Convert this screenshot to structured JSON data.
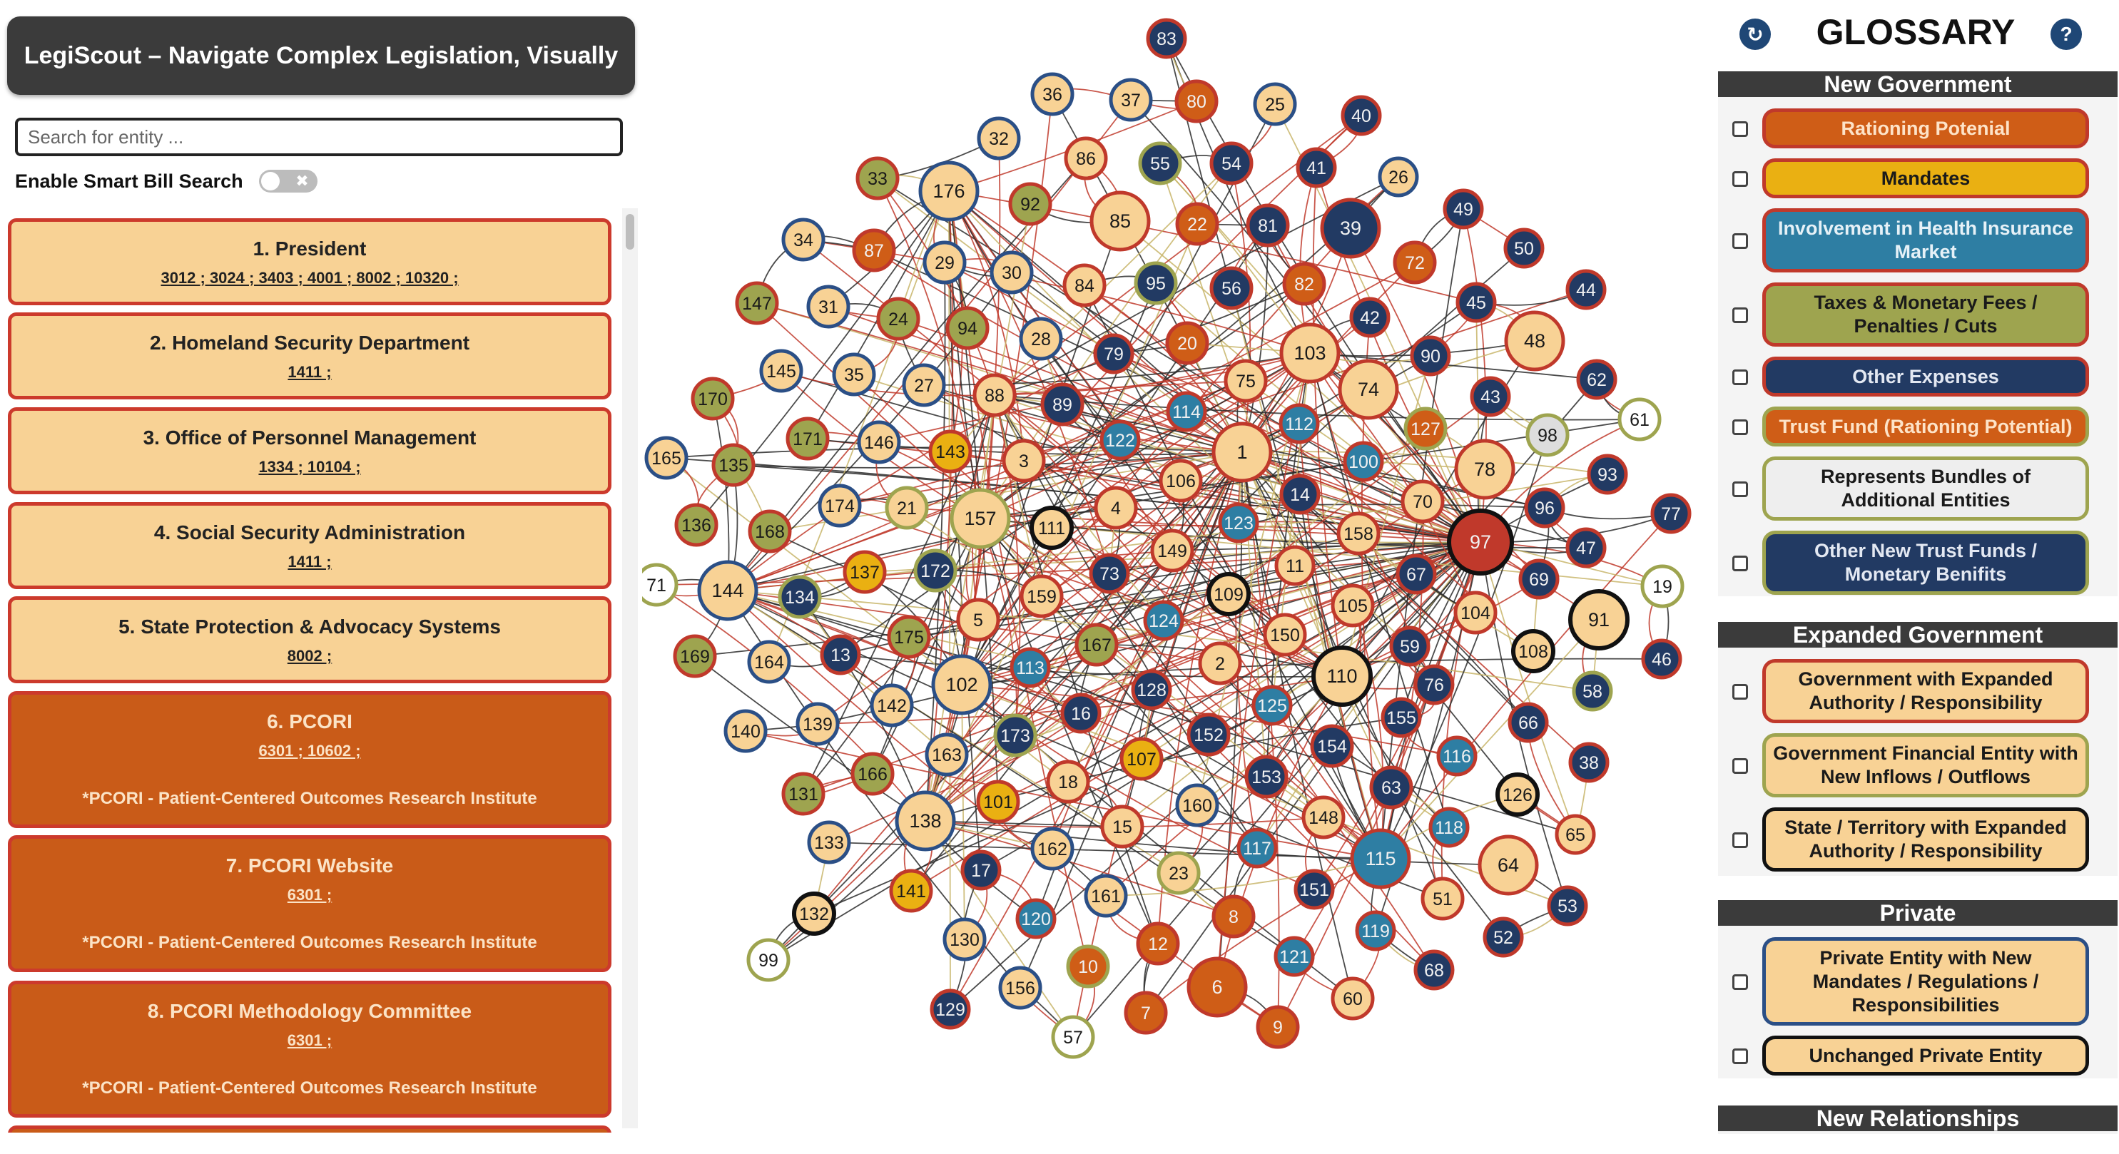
{
  "app": {
    "title": "LegiScout – Navigate Complex Legislation, Visually"
  },
  "search": {
    "placeholder": "Search for entity ..."
  },
  "smart_search": {
    "label": "Enable Smart Bill Search",
    "enabled": false,
    "toggle_glyph": "✖"
  },
  "entities": [
    {
      "title": "1. President",
      "bills": "3012 ; 3024 ; 3403 ; 4001 ; 8002 ; 10320 ;",
      "note": ""
    },
    {
      "title": "2. Homeland Security Department",
      "bills": "1411 ;",
      "note": ""
    },
    {
      "title": "3. Office of Personnel Management",
      "bills": "1334 ; 10104 ;",
      "note": ""
    },
    {
      "title": "4. Social Security Administration",
      "bills": "1411 ;",
      "note": ""
    },
    {
      "title": "5. State Protection & Advocacy Systems",
      "bills": "8002 ;",
      "note": ""
    },
    {
      "title": "6. PCORI",
      "bills": "6301 ; 10602 ;",
      "note": "*PCORI - Patient-Centered Outcomes Research Institute"
    },
    {
      "title": "7. PCORI Website",
      "bills": "6301 ;",
      "note": "*PCORI - Patient-Centered Outcomes Research Institute"
    },
    {
      "title": "8. PCORI Methodology Committee",
      "bills": "6301 ;",
      "note": "*PCORI - Patient-Centered Outcomes Research Institute"
    }
  ],
  "glossary": {
    "title": "GLOSSARY",
    "refresh_icon": "refresh-icon",
    "help_icon": "help-icon",
    "help_glyph": "?",
    "refresh_glyph": "↻",
    "sections": [
      {
        "header": "New Government",
        "items": [
          {
            "label": "Rationing Potenial",
            "fill": "#cf5d17",
            "border": "#c0392b",
            "text": "#fde3c8"
          },
          {
            "label": "Mandates",
            "fill": "#eab012",
            "border": "#c0392b",
            "text": "#1a1a1a"
          },
          {
            "label": "Involvement in Health Insurance Market",
            "fill": "#2e7ea3",
            "border": "#c0392b",
            "text": "#e6f1f7"
          },
          {
            "label": "Taxes & Monetary Fees / Penalties / Cuts",
            "fill": "#9ea44f",
            "border": "#c0392b",
            "text": "#1a1a1a"
          },
          {
            "label": "Other Expenses",
            "fill": "#223a63",
            "border": "#c0392b",
            "text": "#e3e8f2"
          },
          {
            "label": "Trust Fund (Rationing Potential)",
            "fill": "#cf5d17",
            "border": "#9ea44f",
            "text": "#fde3c8"
          },
          {
            "label": "Represents Bundles of Additional Entities",
            "fill": "#eeeeee",
            "border": "#9ea44f",
            "text": "#1a1a1a"
          },
          {
            "label": "Other New Trust Funds / Monetary Benifits",
            "fill": "#223a63",
            "border": "#9ea44f",
            "text": "#e3e8f2"
          }
        ]
      },
      {
        "header": "Expanded Government",
        "items": [
          {
            "label": "Government with Expanded Authority / Responsibility",
            "fill": "#f8d295",
            "border": "#c0392b",
            "text": "#1a1a1a"
          },
          {
            "label": "Government Financial Entity with New Inflows / Outflows",
            "fill": "#f8d295",
            "border": "#9ea44f",
            "text": "#1a1a1a"
          },
          {
            "label": "State / Territory with Expanded Authority / Responsibility",
            "fill": "#f8d295",
            "border": "#111111",
            "text": "#1a1a1a"
          }
        ]
      },
      {
        "header": "Private",
        "items": [
          {
            "label": "Private Entity with New Mandates / Regulations / Responsibilities",
            "fill": "#f8d295",
            "border": "#2b4f86",
            "text": "#1a1a1a"
          },
          {
            "label": "Unchanged Private Entity",
            "fill": "#f8d295",
            "border": "#111111",
            "text": "#1a1a1a"
          }
        ]
      },
      {
        "header": "New Relationships",
        "items": []
      }
    ]
  },
  "graph": {
    "category_colors": {
      "peach": "#f8d295",
      "rust": "#cf5d17",
      "navy": "#223a63",
      "teal": "#2e7ea3",
      "olive": "#9ea44f",
      "gold": "#eab012",
      "white": "#ffffff",
      "grey": "#dddddd",
      "hub": "#c0392b"
    },
    "nodes": [
      {
        "id": "1",
        "c": "peach",
        "b": "red"
      },
      {
        "id": "2",
        "c": "peach",
        "b": "red"
      },
      {
        "id": "3",
        "c": "peach",
        "b": "red"
      },
      {
        "id": "4",
        "c": "peach",
        "b": "red"
      },
      {
        "id": "5",
        "c": "peach",
        "b": "red"
      },
      {
        "id": "6",
        "c": "rust",
        "b": "red"
      },
      {
        "id": "7",
        "c": "rust",
        "b": "red"
      },
      {
        "id": "8",
        "c": "rust",
        "b": "red"
      },
      {
        "id": "9",
        "c": "rust",
        "b": "red"
      },
      {
        "id": "10",
        "c": "rust",
        "b": "olive"
      },
      {
        "id": "11",
        "c": "peach",
        "b": "red"
      },
      {
        "id": "12",
        "c": "rust",
        "b": "red"
      },
      {
        "id": "13",
        "c": "navy",
        "b": "red"
      },
      {
        "id": "14",
        "c": "navy",
        "b": "red"
      },
      {
        "id": "15",
        "c": "peach",
        "b": "red"
      },
      {
        "id": "16",
        "c": "navy",
        "b": "red"
      },
      {
        "id": "17",
        "c": "navy",
        "b": "red"
      },
      {
        "id": "18",
        "c": "peach",
        "b": "red"
      },
      {
        "id": "19",
        "c": "white",
        "b": "olive"
      },
      {
        "id": "20",
        "c": "rust",
        "b": "red"
      },
      {
        "id": "21",
        "c": "peach",
        "b": "olive"
      },
      {
        "id": "22",
        "c": "rust",
        "b": "red"
      },
      {
        "id": "23",
        "c": "peach",
        "b": "olive"
      },
      {
        "id": "24",
        "c": "olive",
        "b": "red"
      },
      {
        "id": "25",
        "c": "peach",
        "b": "blue"
      },
      {
        "id": "26",
        "c": "peach",
        "b": "blue"
      },
      {
        "id": "27",
        "c": "peach",
        "b": "blue"
      },
      {
        "id": "28",
        "c": "peach",
        "b": "blue"
      },
      {
        "id": "29",
        "c": "peach",
        "b": "blue"
      },
      {
        "id": "30",
        "c": "peach",
        "b": "blue"
      },
      {
        "id": "31",
        "c": "peach",
        "b": "blue"
      },
      {
        "id": "32",
        "c": "peach",
        "b": "blue"
      },
      {
        "id": "33",
        "c": "olive",
        "b": "red"
      },
      {
        "id": "34",
        "c": "peach",
        "b": "blue"
      },
      {
        "id": "35",
        "c": "peach",
        "b": "blue"
      },
      {
        "id": "36",
        "c": "peach",
        "b": "blue"
      },
      {
        "id": "37",
        "c": "peach",
        "b": "blue"
      },
      {
        "id": "38",
        "c": "navy",
        "b": "red"
      },
      {
        "id": "39",
        "c": "navy",
        "b": "red"
      },
      {
        "id": "40",
        "c": "navy",
        "b": "red"
      },
      {
        "id": "41",
        "c": "navy",
        "b": "red"
      },
      {
        "id": "42",
        "c": "navy",
        "b": "red"
      },
      {
        "id": "43",
        "c": "navy",
        "b": "red"
      },
      {
        "id": "44",
        "c": "navy",
        "b": "red"
      },
      {
        "id": "45",
        "c": "navy",
        "b": "red"
      },
      {
        "id": "46",
        "c": "navy",
        "b": "red"
      },
      {
        "id": "47",
        "c": "navy",
        "b": "red"
      },
      {
        "id": "48",
        "c": "peach",
        "b": "red"
      },
      {
        "id": "49",
        "c": "navy",
        "b": "red"
      },
      {
        "id": "50",
        "c": "navy",
        "b": "red"
      },
      {
        "id": "51",
        "c": "peach",
        "b": "red"
      },
      {
        "id": "52",
        "c": "navy",
        "b": "red"
      },
      {
        "id": "53",
        "c": "navy",
        "b": "red"
      },
      {
        "id": "54",
        "c": "navy",
        "b": "red"
      },
      {
        "id": "55",
        "c": "navy",
        "b": "olive"
      },
      {
        "id": "56",
        "c": "navy",
        "b": "red"
      },
      {
        "id": "57",
        "c": "white",
        "b": "olive"
      },
      {
        "id": "58",
        "c": "navy",
        "b": "olive"
      },
      {
        "id": "59",
        "c": "navy",
        "b": "red"
      },
      {
        "id": "60",
        "c": "peach",
        "b": "red"
      },
      {
        "id": "61",
        "c": "white",
        "b": "olive"
      },
      {
        "id": "62",
        "c": "navy",
        "b": "red"
      },
      {
        "id": "63",
        "c": "navy",
        "b": "red"
      },
      {
        "id": "64",
        "c": "peach",
        "b": "red"
      },
      {
        "id": "65",
        "c": "peach",
        "b": "red"
      },
      {
        "id": "66",
        "c": "navy",
        "b": "red"
      },
      {
        "id": "67",
        "c": "navy",
        "b": "red"
      },
      {
        "id": "68",
        "c": "navy",
        "b": "red"
      },
      {
        "id": "69",
        "c": "navy",
        "b": "red"
      },
      {
        "id": "70",
        "c": "peach",
        "b": "red"
      },
      {
        "id": "71",
        "c": "white",
        "b": "olive"
      },
      {
        "id": "72",
        "c": "rust",
        "b": "red"
      },
      {
        "id": "73",
        "c": "navy",
        "b": "red"
      },
      {
        "id": "74",
        "c": "peach",
        "b": "red"
      },
      {
        "id": "75",
        "c": "peach",
        "b": "red"
      },
      {
        "id": "76",
        "c": "navy",
        "b": "red"
      },
      {
        "id": "77",
        "c": "navy",
        "b": "red"
      },
      {
        "id": "78",
        "c": "peach",
        "b": "red"
      },
      {
        "id": "79",
        "c": "navy",
        "b": "red"
      },
      {
        "id": "80",
        "c": "rust",
        "b": "red"
      },
      {
        "id": "81",
        "c": "navy",
        "b": "red"
      },
      {
        "id": "82",
        "c": "rust",
        "b": "red"
      },
      {
        "id": "83",
        "c": "navy",
        "b": "red"
      },
      {
        "id": "84",
        "c": "peach",
        "b": "red"
      },
      {
        "id": "85",
        "c": "peach",
        "b": "red"
      },
      {
        "id": "86",
        "c": "peach",
        "b": "red"
      },
      {
        "id": "87",
        "c": "rust",
        "b": "red"
      },
      {
        "id": "88",
        "c": "peach",
        "b": "red"
      },
      {
        "id": "89",
        "c": "navy",
        "b": "red"
      },
      {
        "id": "90",
        "c": "navy",
        "b": "red"
      },
      {
        "id": "91",
        "c": "peach",
        "b": "black"
      },
      {
        "id": "92",
        "c": "olive",
        "b": "red"
      },
      {
        "id": "93",
        "c": "navy",
        "b": "red"
      },
      {
        "id": "94",
        "c": "olive",
        "b": "red"
      },
      {
        "id": "95",
        "c": "navy",
        "b": "olive"
      },
      {
        "id": "96",
        "c": "navy",
        "b": "red"
      },
      {
        "id": "97",
        "c": "hub",
        "b": "black"
      },
      {
        "id": "98",
        "c": "grey",
        "b": "olive"
      },
      {
        "id": "99",
        "c": "white",
        "b": "olive"
      },
      {
        "id": "100",
        "c": "teal",
        "b": "red"
      },
      {
        "id": "101",
        "c": "gold",
        "b": "red"
      },
      {
        "id": "102",
        "c": "peach",
        "b": "blue"
      },
      {
        "id": "103",
        "c": "peach",
        "b": "red"
      },
      {
        "id": "104",
        "c": "peach",
        "b": "red"
      },
      {
        "id": "105",
        "c": "peach",
        "b": "red"
      },
      {
        "id": "106",
        "c": "peach",
        "b": "red"
      },
      {
        "id": "107",
        "c": "gold",
        "b": "red"
      },
      {
        "id": "108",
        "c": "peach",
        "b": "black"
      },
      {
        "id": "109",
        "c": "peach",
        "b": "black"
      },
      {
        "id": "110",
        "c": "peach",
        "b": "black"
      },
      {
        "id": "111",
        "c": "peach",
        "b": "black"
      },
      {
        "id": "112",
        "c": "teal",
        "b": "red"
      },
      {
        "id": "113",
        "c": "teal",
        "b": "red"
      },
      {
        "id": "114",
        "c": "teal",
        "b": "red"
      },
      {
        "id": "115",
        "c": "teal",
        "b": "red"
      },
      {
        "id": "116",
        "c": "teal",
        "b": "red"
      },
      {
        "id": "117",
        "c": "teal",
        "b": "red"
      },
      {
        "id": "118",
        "c": "teal",
        "b": "red"
      },
      {
        "id": "119",
        "c": "teal",
        "b": "red"
      },
      {
        "id": "120",
        "c": "teal",
        "b": "red"
      },
      {
        "id": "121",
        "c": "teal",
        "b": "red"
      },
      {
        "id": "122",
        "c": "teal",
        "b": "red"
      },
      {
        "id": "123",
        "c": "teal",
        "b": "red"
      },
      {
        "id": "124",
        "c": "teal",
        "b": "red"
      },
      {
        "id": "125",
        "c": "teal",
        "b": "red"
      },
      {
        "id": "126",
        "c": "peach",
        "b": "black"
      },
      {
        "id": "127",
        "c": "rust",
        "b": "olive"
      },
      {
        "id": "128",
        "c": "navy",
        "b": "red"
      },
      {
        "id": "129",
        "c": "navy",
        "b": "red"
      },
      {
        "id": "130",
        "c": "peach",
        "b": "blue"
      },
      {
        "id": "131",
        "c": "olive",
        "b": "red"
      },
      {
        "id": "132",
        "c": "peach",
        "b": "black"
      },
      {
        "id": "133",
        "c": "peach",
        "b": "blue"
      },
      {
        "id": "134",
        "c": "navy",
        "b": "olive"
      },
      {
        "id": "135",
        "c": "olive",
        "b": "red"
      },
      {
        "id": "136",
        "c": "olive",
        "b": "red"
      },
      {
        "id": "137",
        "c": "gold",
        "b": "red"
      },
      {
        "id": "138",
        "c": "peach",
        "b": "blue"
      },
      {
        "id": "139",
        "c": "peach",
        "b": "blue"
      },
      {
        "id": "140",
        "c": "peach",
        "b": "blue"
      },
      {
        "id": "141",
        "c": "gold",
        "b": "red"
      },
      {
        "id": "142",
        "c": "peach",
        "b": "blue"
      },
      {
        "id": "143",
        "c": "gold",
        "b": "red"
      },
      {
        "id": "144",
        "c": "peach",
        "b": "blue"
      },
      {
        "id": "145",
        "c": "peach",
        "b": "blue"
      },
      {
        "id": "146",
        "c": "peach",
        "b": "blue"
      },
      {
        "id": "147",
        "c": "olive",
        "b": "red"
      },
      {
        "id": "148",
        "c": "peach",
        "b": "red"
      },
      {
        "id": "149",
        "c": "peach",
        "b": "red"
      },
      {
        "id": "150",
        "c": "peach",
        "b": "red"
      },
      {
        "id": "151",
        "c": "navy",
        "b": "red"
      },
      {
        "id": "152",
        "c": "navy",
        "b": "red"
      },
      {
        "id": "153",
        "c": "navy",
        "b": "red"
      },
      {
        "id": "154",
        "c": "navy",
        "b": "red"
      },
      {
        "id": "155",
        "c": "navy",
        "b": "red"
      },
      {
        "id": "156",
        "c": "peach",
        "b": "blue"
      },
      {
        "id": "157",
        "c": "peach",
        "b": "olive"
      },
      {
        "id": "158",
        "c": "peach",
        "b": "red"
      },
      {
        "id": "159",
        "c": "peach",
        "b": "red"
      },
      {
        "id": "160",
        "c": "peach",
        "b": "blue"
      },
      {
        "id": "161",
        "c": "peach",
        "b": "blue"
      },
      {
        "id": "162",
        "c": "peach",
        "b": "blue"
      },
      {
        "id": "163",
        "c": "peach",
        "b": "blue"
      },
      {
        "id": "164",
        "c": "peach",
        "b": "blue"
      },
      {
        "id": "165",
        "c": "peach",
        "b": "blue"
      },
      {
        "id": "166",
        "c": "olive",
        "b": "red"
      },
      {
        "id": "167",
        "c": "olive",
        "b": "red"
      },
      {
        "id": "168",
        "c": "olive",
        "b": "red"
      },
      {
        "id": "169",
        "c": "olive",
        "b": "red"
      },
      {
        "id": "170",
        "c": "olive",
        "b": "red"
      },
      {
        "id": "171",
        "c": "olive",
        "b": "red"
      },
      {
        "id": "172",
        "c": "navy",
        "b": "olive"
      },
      {
        "id": "173",
        "c": "navy",
        "b": "olive"
      },
      {
        "id": "174",
        "c": "peach",
        "b": "blue"
      },
      {
        "id": "175",
        "c": "olive",
        "b": "red"
      },
      {
        "id": "176",
        "c": "peach",
        "b": "blue"
      }
    ]
  }
}
